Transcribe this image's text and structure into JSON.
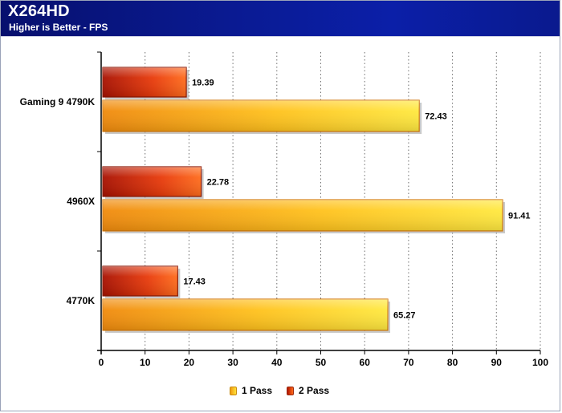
{
  "header": {
    "title": "X264HD",
    "subtitle": "Higher is Better - FPS"
  },
  "legend": {
    "items": [
      {
        "label": "1 Pass"
      },
      {
        "label": "2 Pass"
      }
    ]
  },
  "colors": {
    "header_bg": "#0a1b95",
    "series_1pass_start": "#f29a10",
    "series_1pass_end": "#ffe23a",
    "series_2pass_start": "#b01400",
    "series_2pass_end": "#ff6a1a",
    "grid": "#7f7f7f"
  },
  "chart_data": {
    "type": "bar",
    "orientation": "horizontal",
    "title": "X264HD",
    "subtitle": "Higher is Better - FPS",
    "categories": [
      "Gaming 9 4790K",
      "4960X",
      "4770K"
    ],
    "series": [
      {
        "name": "2 Pass",
        "values": [
          19.39,
          22.78,
          17.43
        ]
      },
      {
        "name": "1 Pass",
        "values": [
          72.43,
          91.41,
          65.27
        ]
      }
    ],
    "xlim": [
      0,
      100
    ],
    "x_ticks": [
      0,
      10,
      20,
      30,
      40,
      50,
      60,
      70,
      80,
      90,
      100
    ],
    "grid": true,
    "legend_position": "bottom"
  }
}
